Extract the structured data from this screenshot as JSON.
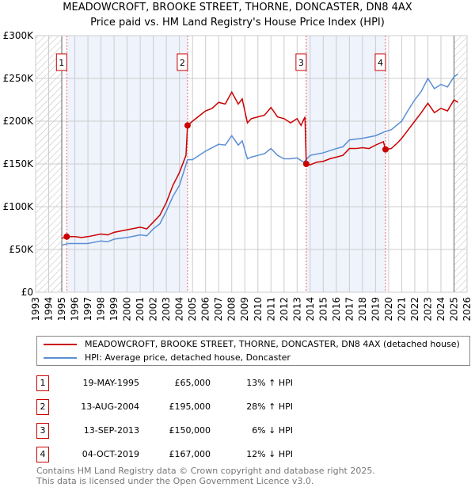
{
  "chart_data": {
    "type": "line",
    "title": "MEADOWCROFT, BROOKE STREET, THORNE, DONCASTER, DN8 4AX",
    "subtitle": "Price paid vs. HM Land Registry's House Price Index (HPI)",
    "xlim": [
      1993,
      2026
    ],
    "ylim": [
      0,
      300000
    ],
    "y_ticks": [
      {
        "v": 0,
        "label": "£0"
      },
      {
        "v": 50000,
        "label": "£50K"
      },
      {
        "v": 100000,
        "label": "£100K"
      },
      {
        "v": 150000,
        "label": "£150K"
      },
      {
        "v": 200000,
        "label": "£200K"
      },
      {
        "v": 250000,
        "label": "£250K"
      },
      {
        "v": 300000,
        "label": "£300K"
      }
    ],
    "x_ticks": [
      "1993",
      "1994",
      "1995",
      "1996",
      "1997",
      "1998",
      "1999",
      "2000",
      "2001",
      "2002",
      "2003",
      "2004",
      "2005",
      "2006",
      "2007",
      "2008",
      "2009",
      "2010",
      "2011",
      "2012",
      "2013",
      "2014",
      "2015",
      "2016",
      "2017",
      "2018",
      "2019",
      "2020",
      "2021",
      "2022",
      "2023",
      "2024",
      "2025",
      "2026"
    ],
    "hatched_ranges": [
      [
        1993,
        1995.0
      ],
      [
        2025.0,
        2026
      ]
    ],
    "shaded_ranges": [
      [
        1995.38,
        2004.62
      ],
      [
        2013.7,
        2019.76
      ]
    ],
    "series": [
      {
        "name": "MEADOWCROFT, BROOKE STREET, THORNE, DONCASTER, DN8 4AX (detached house)",
        "color": "#cc0000",
        "x": [
          1995.0,
          1995.38,
          1996,
          1996.5,
          1997,
          1998,
          1998.5,
          1999,
          2000,
          2001,
          2001.5,
          2002,
          2002.5,
          2003,
          2003.5,
          2004,
          2004.5,
          2004.62,
          2005,
          2005.5,
          2006,
          2006.5,
          2007,
          2007.5,
          2008,
          2008.5,
          2008.8,
          2009.2,
          2009.5,
          2010,
          2010.5,
          2011,
          2011.5,
          2012,
          2012.5,
          2013,
          2013.3,
          2013.6,
          2013.7,
          2014,
          2014.5,
          2015,
          2015.5,
          2016,
          2016.5,
          2017,
          2017.5,
          2018,
          2018.5,
          2019,
          2019.6,
          2019.76,
          2020.2,
          2020.7,
          2021,
          2021.5,
          2022,
          2022.5,
          2023,
          2023.5,
          2024,
          2024.5,
          2025,
          2025.3
        ],
        "y": [
          63000,
          65000,
          65000,
          64000,
          65000,
          68000,
          67000,
          70000,
          73000,
          76000,
          74000,
          82000,
          90000,
          105000,
          125000,
          140000,
          160000,
          195000,
          200000,
          206000,
          212000,
          215000,
          222000,
          220000,
          234000,
          220000,
          226000,
          198000,
          203000,
          205000,
          207000,
          216000,
          205000,
          203000,
          198000,
          203000,
          195000,
          205000,
          150000,
          149000,
          152000,
          153000,
          156000,
          158000,
          160000,
          168000,
          168000,
          169000,
          168000,
          172000,
          176000,
          167000,
          168000,
          175000,
          180000,
          190000,
          200000,
          210000,
          221000,
          210000,
          215000,
          212000,
          225000,
          222000
        ]
      },
      {
        "name": "HPI: Average price, detached house, Doncaster",
        "color": "#5b8fd4",
        "x": [
          1995.0,
          1995.5,
          1996,
          1997,
          1998,
          1998.5,
          1999,
          2000,
          2001,
          2001.5,
          2002,
          2002.5,
          2003,
          2003.5,
          2004,
          2004.62,
          2005,
          2005.5,
          2006,
          2007,
          2007.5,
          2008,
          2008.5,
          2008.8,
          2009.2,
          2009.5,
          2010,
          2010.5,
          2011,
          2011.5,
          2012,
          2012.5,
          2013,
          2013.5,
          2014,
          2015,
          2016,
          2016.5,
          2017,
          2018,
          2019,
          2019.76,
          2020.2,
          2021,
          2021.5,
          2022,
          2022.5,
          2023,
          2023.5,
          2024,
          2024.5,
          2025,
          2025.3
        ],
        "y": [
          55000,
          57000,
          57000,
          57000,
          60000,
          59000,
          62000,
          64000,
          67000,
          66000,
          74000,
          80000,
          95000,
          112000,
          125000,
          155000,
          155000,
          160000,
          165000,
          173000,
          172000,
          183000,
          172000,
          177000,
          156000,
          158000,
          160000,
          162000,
          168000,
          160000,
          156000,
          156000,
          157000,
          152000,
          160000,
          163000,
          168000,
          170000,
          178000,
          180000,
          183000,
          188000,
          190000,
          200000,
          213000,
          225000,
          235000,
          250000,
          238000,
          243000,
          240000,
          252000,
          255000
        ]
      }
    ],
    "sales": [
      {
        "n": "1",
        "x": 1995.38,
        "y": 65000,
        "date": "19-MAY-1995",
        "price": "£65,000",
        "hpi": "13% ↑ HPI"
      },
      {
        "n": "2",
        "x": 2004.62,
        "y": 195000,
        "date": "13-AUG-2004",
        "price": "£195,000",
        "hpi": "28% ↑ HPI"
      },
      {
        "n": "3",
        "x": 2013.7,
        "y": 150000,
        "date": "13-SEP-2013",
        "price": "£150,000",
        "hpi": "6% ↓ HPI"
      },
      {
        "n": "4",
        "x": 2019.76,
        "y": 167000,
        "date": "04-OCT-2019",
        "price": "£167,000",
        "hpi": "12% ↓ HPI"
      }
    ]
  },
  "footer": {
    "line1": "Contains HM Land Registry data © Crown copyright and database right 2025.",
    "line2": "This data is licensed under the Open Government Licence v3.0."
  }
}
